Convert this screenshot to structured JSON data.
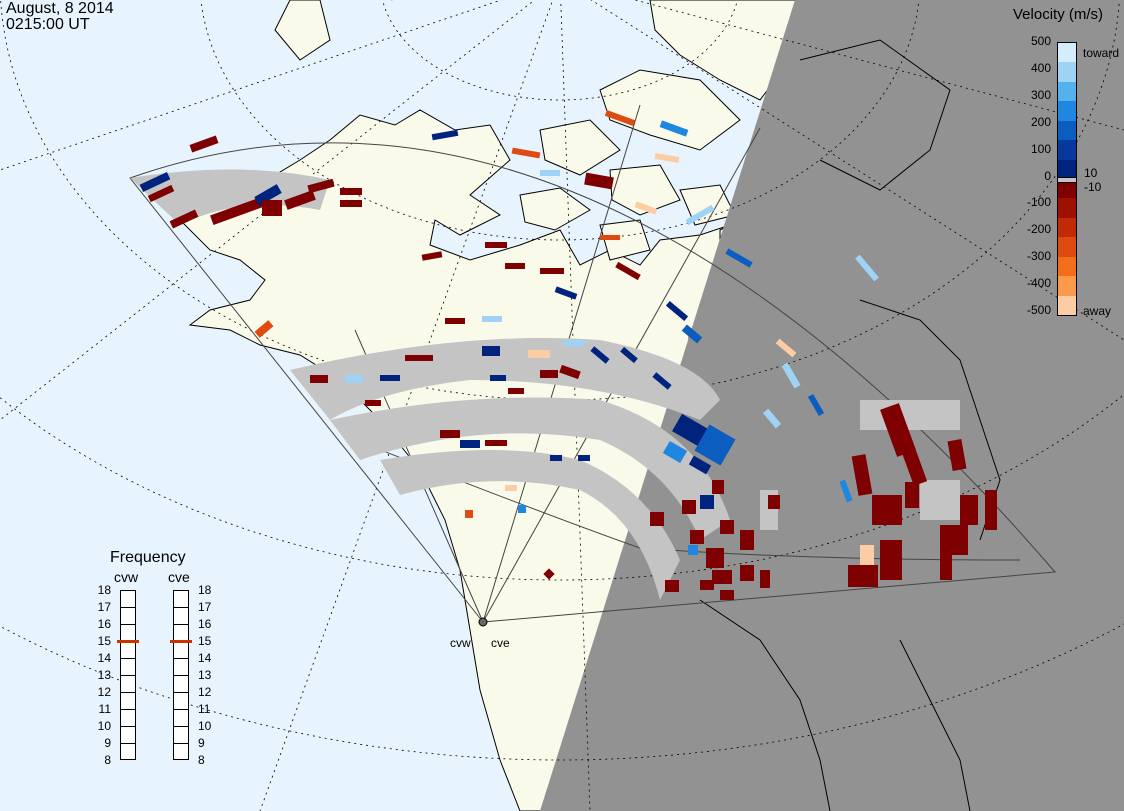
{
  "header": {
    "date": "August, 8 2014",
    "time": "0215:00 UT"
  },
  "colorbar": {
    "title": "Velocity (m/s)",
    "ticks": [
      "500",
      "400",
      "300",
      "200",
      "100",
      "0",
      "-100",
      "-200",
      "-300",
      "-400",
      "-500"
    ],
    "small_ticks": [
      "10",
      "-10"
    ],
    "label_top": "toward",
    "label_bottom": "away"
  },
  "frequency_panel": {
    "title": "Frequency",
    "radars": [
      {
        "name": "cvw",
        "frequency_mhz": 15
      },
      {
        "name": "cve",
        "frequency_mhz": 15
      }
    ],
    "scale": [
      "18",
      "17",
      "16",
      "15",
      "14",
      "13",
      "12",
      "11",
      "10",
      "9",
      "8"
    ]
  },
  "sites": [
    {
      "code": "cvw"
    },
    {
      "code": "cve"
    }
  ],
  "colors": {
    "ocean": "#e8f4fd",
    "land": "#fafaea",
    "night": "#929292",
    "ground_scatter": "#c4c4c4",
    "toward_strong": "#00237e",
    "toward_light": "#9ed3f5",
    "away_strong": "#7e0000",
    "away_mid": "#dd4b11",
    "away_light": "#fccca4",
    "frequency_marker": "#cc3300"
  },
  "legend_colors": [
    "#d4ecfb",
    "#9ed3f5",
    "#55b0ee",
    "#1f87e0",
    "#0b5dc0",
    "#06399b",
    "#00237e",
    "#7e0000",
    "#9e1100",
    "#c02a06",
    "#dd4b11",
    "#f26e1a",
    "#fb9a4a",
    "#fccca4"
  ]
}
